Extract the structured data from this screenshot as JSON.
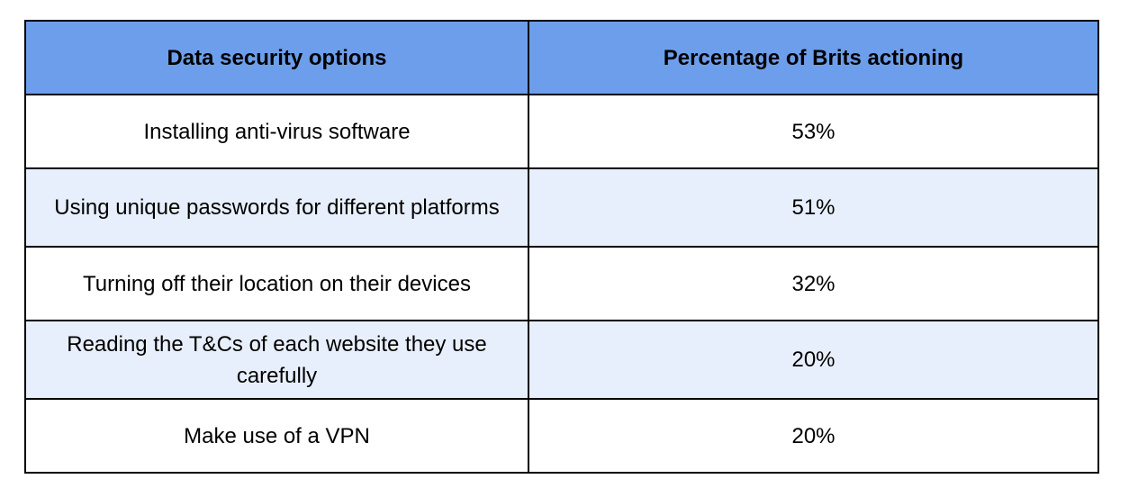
{
  "table": {
    "headers": [
      "Data security options",
      "Percentage of Brits actioning"
    ],
    "rows": [
      {
        "option": "Installing anti-virus software",
        "percentage": "53%"
      },
      {
        "option": "Using unique passwords for different platforms",
        "percentage": "51%"
      },
      {
        "option": "Turning off their location on their devices",
        "percentage": "32%"
      },
      {
        "option": "Reading the T&Cs of each website they use carefully",
        "percentage": "20%"
      },
      {
        "option": "Make use of a VPN",
        "percentage": "20%"
      }
    ]
  },
  "colors": {
    "header_bg": "#6d9eeb",
    "stripe_bg": "#e8effc",
    "border": "#000000"
  }
}
